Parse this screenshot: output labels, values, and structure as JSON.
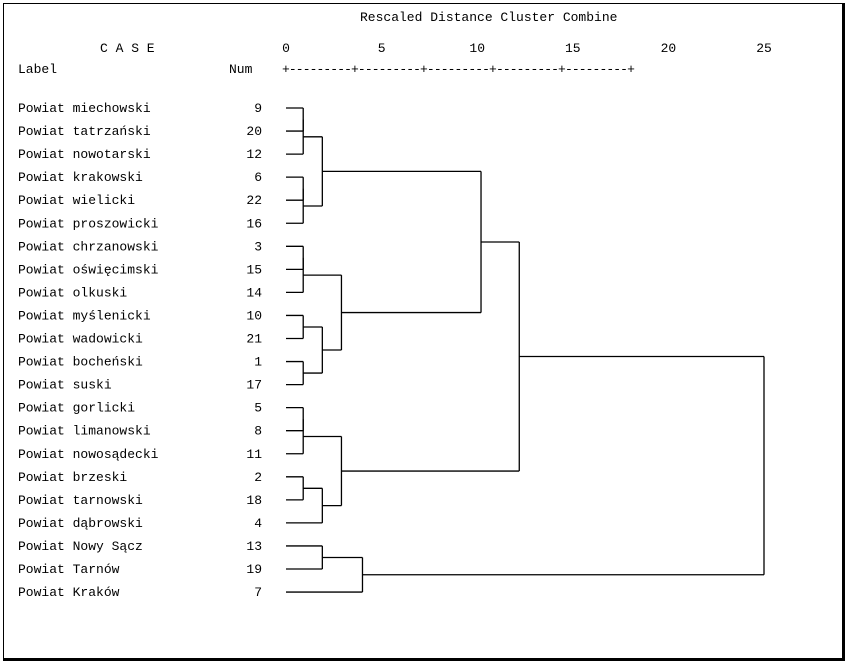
{
  "header": {
    "title": "Rescaled Distance Cluster Combine",
    "case_label": "C A S E",
    "label_col": "Label",
    "num_col": "Num",
    "scale_ticks": [
      "0",
      "5",
      "10",
      "15",
      "20",
      "25"
    ],
    "scale_rule": "+---------+---------+---------+---------+---------+"
  },
  "cases": [
    {
      "label": "Powiat miechowski",
      "num": "9"
    },
    {
      "label": "Powiat tatrzański",
      "num": "20"
    },
    {
      "label": "Powiat nowotarski",
      "num": "12"
    },
    {
      "label": "Powiat krakowski",
      "num": "6"
    },
    {
      "label": "Powiat wielicki",
      "num": "22"
    },
    {
      "label": "Powiat proszowicki",
      "num": "16"
    },
    {
      "label": "Powiat chrzanowski",
      "num": "3"
    },
    {
      "label": "Powiat oświęcimski",
      "num": "15"
    },
    {
      "label": "Powiat olkuski",
      "num": "14"
    },
    {
      "label": "Powiat myślenicki",
      "num": "10"
    },
    {
      "label": "Powiat wadowicki",
      "num": "21"
    },
    {
      "label": "Powiat bocheński",
      "num": "1"
    },
    {
      "label": "Powiat suski",
      "num": "17"
    },
    {
      "label": "Powiat gorlicki",
      "num": "5"
    },
    {
      "label": "Powiat limanowski",
      "num": "8"
    },
    {
      "label": "Powiat nowosądecki",
      "num": "11"
    },
    {
      "label": "Powiat brzeski",
      "num": "2"
    },
    {
      "label": "Powiat tarnowski",
      "num": "18"
    },
    {
      "label": "Powiat dąbrowski",
      "num": "4"
    },
    {
      "label": "Powiat Nowy Sącz",
      "num": "13"
    },
    {
      "label": "Powiat Tarnów",
      "num": "19"
    },
    {
      "label": "Powiat Kraków",
      "num": "7"
    }
  ],
  "merges": [
    {
      "a": 0,
      "b": 1,
      "d": 0.9
    },
    {
      "a": "m0",
      "b": 2,
      "d": 0.9
    },
    {
      "a": 3,
      "b": 4,
      "d": 0.9
    },
    {
      "a": "m2",
      "b": 5,
      "d": 0.9
    },
    {
      "a": "m1",
      "b": "m3",
      "d": 1.9
    },
    {
      "a": 6,
      "b": 7,
      "d": 0.9
    },
    {
      "a": "m5",
      "b": 8,
      "d": 0.9
    },
    {
      "a": 9,
      "b": 10,
      "d": 0.9
    },
    {
      "a": 11,
      "b": 12,
      "d": 0.9
    },
    {
      "a": "m7",
      "b": "m8",
      "d": 1.9
    },
    {
      "a": "m6",
      "b": "m9",
      "d": 2.9
    },
    {
      "a": 13,
      "b": 14,
      "d": 0.9
    },
    {
      "a": "m11",
      "b": 15,
      "d": 0.9
    },
    {
      "a": 16,
      "b": 17,
      "d": 0.9
    },
    {
      "a": "m13",
      "b": 18,
      "d": 1.9
    },
    {
      "a": "m12",
      "b": "m14",
      "d": 2.9
    },
    {
      "a": 19,
      "b": 20,
      "d": 1.9
    },
    {
      "a": "m16",
      "b": 21,
      "d": 4.0
    },
    {
      "a": "m4",
      "b": "m10",
      "d": 10.2
    },
    {
      "a": "m18",
      "b": "m15",
      "d": 12.2
    },
    {
      "a": "m19",
      "b": "m17",
      "d": 25.0
    }
  ]
}
